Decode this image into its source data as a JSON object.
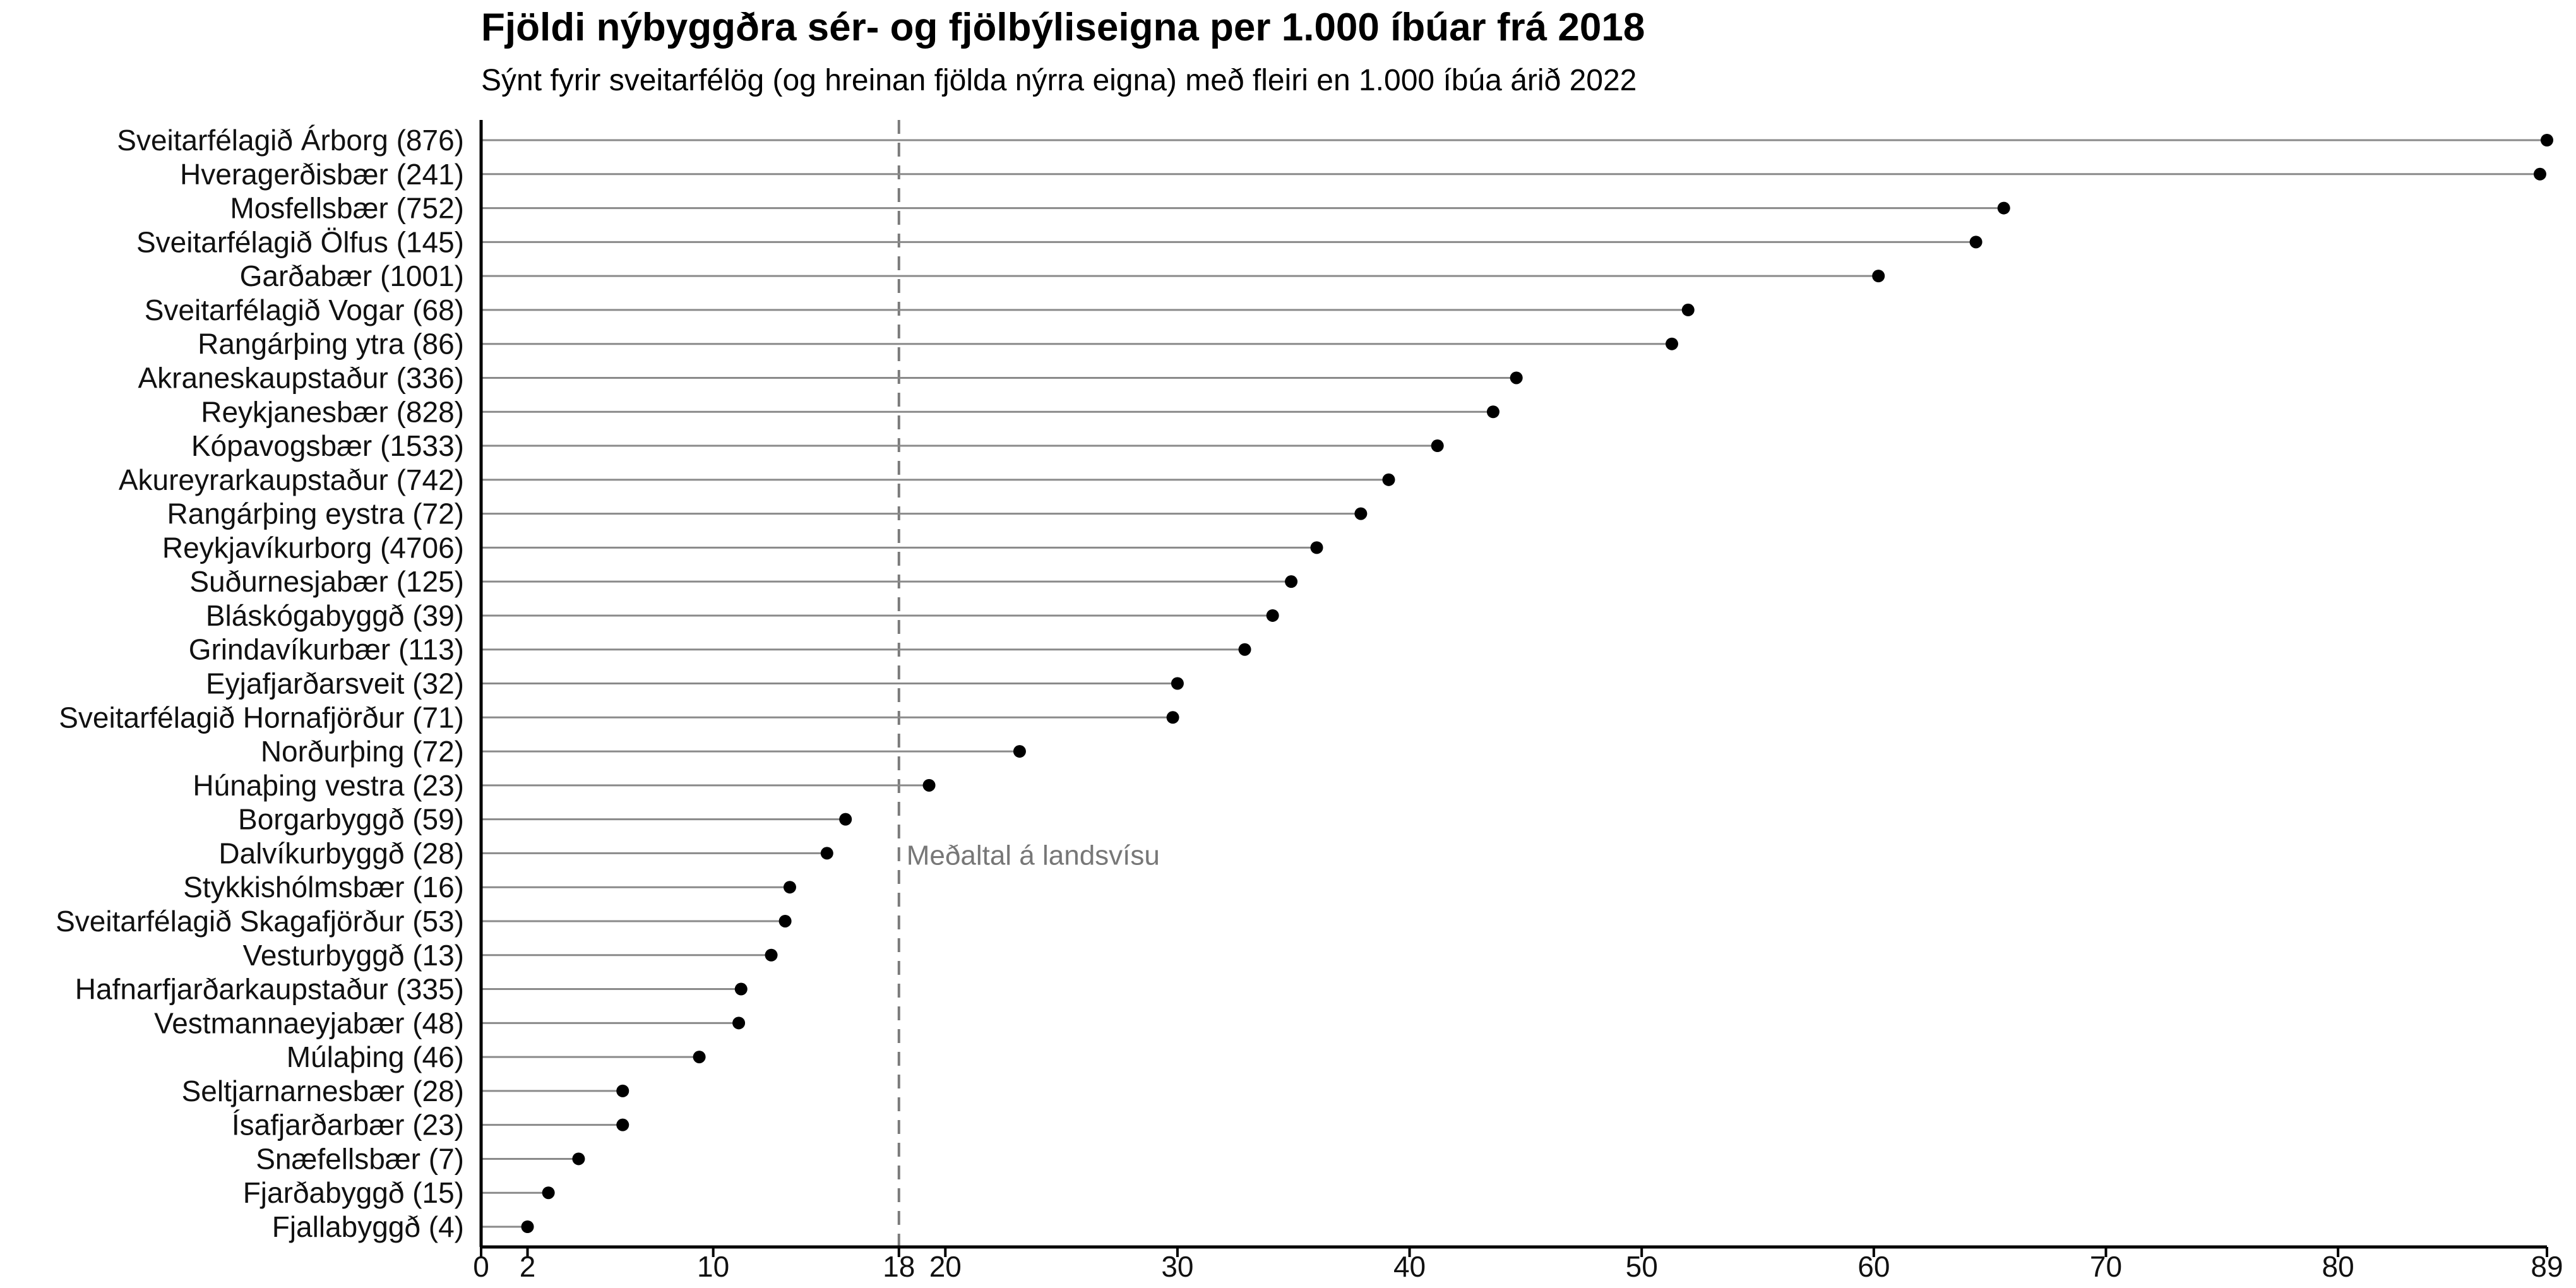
{
  "chart_data": {
    "type": "lollipop",
    "title": "Fjöldi nýbyggðra sér- og fjölbýliseigna per 1.000 íbúar frá 2018",
    "subtitle": "Sýnt fyrir sveitarfélög (og hreinan fjölda nýrra eigna) með fleiri en 1.000 íbúa árið 2022",
    "xlabel": "",
    "ylabel": "",
    "xlim": [
      0,
      89
    ],
    "xticks": [
      0,
      2,
      10,
      18,
      20,
      30,
      40,
      50,
      60,
      70,
      80,
      89
    ],
    "reference_line": {
      "value": 18,
      "label": "Meðaltal á landsvísu"
    },
    "categories": [
      "Sveitarfélagið Árborg (876)",
      "Hveragerðisbær (241)",
      "Mosfellsbær (752)",
      "Sveitarfélagið Ölfus (145)",
      "Garðabær (1001)",
      "Sveitarfélagið Vogar (68)",
      "Rangárþing ytra (86)",
      "Akraneskaupstaður (336)",
      "Reykjanesbær (828)",
      "Kópavogsbær (1533)",
      "Akureyrarkaupstaður (742)",
      "Rangárþing eystra (72)",
      "Reykjavíkurborg (4706)",
      "Suðurnesjabær (125)",
      "Bláskógabyggð (39)",
      "Grindavíkurbær (113)",
      "Eyjafjarðarsveit (32)",
      "Sveitarfélagið Hornafjörður (71)",
      "Norðurþing (72)",
      "Húnaþing vestra (23)",
      "Borgarbyggð (59)",
      "Dalvíkurbyggð (28)",
      "Stykkishólmsbær (16)",
      "Sveitarfélagið Skagafjörður (53)",
      "Vesturbyggð (13)",
      "Hafnarfjarðarkaupstaður (335)",
      "Vestmannaeyjabær (48)",
      "Múlaþing (46)",
      "Seltjarnarnesbær (28)",
      "Ísafjarðarbær (23)",
      "Snæfellsbær (7)",
      "Fjarðabyggð (15)",
      "Fjallabyggð (4)"
    ],
    "values": [
      89.0,
      88.7,
      65.6,
      64.4,
      60.2,
      52.0,
      51.3,
      44.6,
      43.6,
      41.2,
      39.1,
      37.9,
      36.0,
      34.9,
      34.1,
      32.9,
      30.0,
      29.8,
      23.2,
      19.3,
      15.7,
      14.9,
      13.3,
      13.1,
      12.5,
      11.2,
      11.1,
      9.4,
      6.1,
      6.1,
      4.2,
      2.9,
      2.0
    ],
    "grid": false,
    "legend": "none"
  }
}
